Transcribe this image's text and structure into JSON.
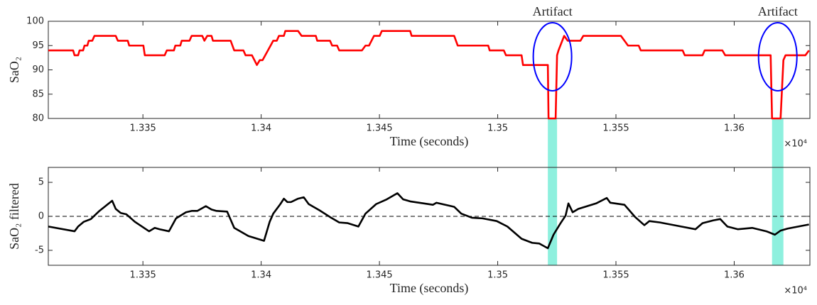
{
  "chart_data": [
    {
      "type": "line",
      "ylabel": "SaO₂",
      "xlabel": "Time (seconds)",
      "x_exponent_label": "×10⁴",
      "xlim": [
        13310,
        13632
      ],
      "ylim": [
        80,
        100
      ],
      "xticks": [
        {
          "value": 13350,
          "label": "1.335"
        },
        {
          "value": 13400,
          "label": "1.34"
        },
        {
          "value": 13450,
          "label": "1.345"
        },
        {
          "value": 13500,
          "label": "1.35"
        },
        {
          "value": 13550,
          "label": "1.355"
        },
        {
          "value": 13600,
          "label": "1.36"
        }
      ],
      "yticks": [
        80,
        85,
        90,
        95,
        100
      ],
      "x": [
        13310.0,
        13320.5,
        13321.1,
        13322.6,
        13323.2,
        13324.7,
        13325.3,
        13326.5,
        13327.1,
        13328.6,
        13329.5,
        13338.5,
        13339.4,
        13343.6,
        13344.2,
        13350.2,
        13350.8,
        13359.2,
        13360.1,
        13363.1,
        13363.7,
        13365.8,
        13366.4,
        13369.7,
        13370.6,
        13375.1,
        13376.0,
        13377.2,
        13379.0,
        13379.6,
        13387.1,
        13388.6,
        13392.5,
        13393.4,
        13396.1,
        13398.2,
        13399.4,
        13400.6,
        13405.1,
        13406.6,
        13407.5,
        13409.6,
        13410.2,
        13415.6,
        13417.1,
        13423.1,
        13423.7,
        13429.1,
        13430.0,
        13432.1,
        13433.0,
        13442.6,
        13444.1,
        13445.6,
        13447.7,
        13450.1,
        13451.0,
        13463.0,
        13463.6,
        13481.6,
        13483.1,
        13496.0,
        13496.6,
        13502.6,
        13503.5,
        13510.1,
        13510.7,
        13521.2,
        13521.5,
        13524.5,
        13525.1,
        13525.7,
        13528.1,
        13529.6,
        13535.0,
        13536.2,
        13552.1,
        13553.6,
        13555.1,
        13559.6,
        13560.5,
        13578.2,
        13579.1,
        13586.6,
        13587.5,
        13595.0,
        13596.2,
        13615.4,
        13616.0,
        13619.6,
        13620.8,
        13621.7,
        13630.1,
        13631.6
      ],
      "series": [
        {
          "color": "#ff0000",
          "values": [
            94,
            94,
            93,
            93,
            94,
            94,
            95,
            95,
            96,
            96,
            97,
            97,
            96,
            96,
            95,
            95,
            93,
            93,
            94,
            94,
            95,
            95,
            96,
            96,
            97,
            97,
            96,
            97,
            97,
            96,
            96,
            94,
            94,
            93,
            93,
            91,
            92,
            92,
            96,
            96,
            97,
            97,
            98,
            98,
            97,
            97,
            96,
            96,
            95,
            95,
            94,
            94,
            95,
            95,
            97,
            97,
            98,
            98,
            97,
            97,
            95,
            95,
            94,
            94,
            93,
            93,
            91,
            91,
            80,
            80,
            93,
            94,
            97,
            96,
            96,
            97,
            97,
            96,
            95,
            95,
            94,
            94,
            93,
            93,
            94,
            94,
            93,
            93,
            80,
            80,
            92,
            93,
            93,
            94
          ]
        }
      ],
      "artifacts": [
        {
          "label": "Artifact",
          "start": 13521.2,
          "end": 13525.1
        },
        {
          "label": "Artifact",
          "start": 13616.0,
          "end": 13620.8
        }
      ],
      "span_color": "#8ef0de",
      "ellipse_color": "#0000ff"
    },
    {
      "type": "line",
      "ylabel": "SaO₂ filtered",
      "xlabel": "Time (seconds)",
      "x_exponent_label": "×10⁴",
      "xlim": [
        13310,
        13632
      ],
      "ylim": [
        -7.2,
        7.2
      ],
      "xticks": [
        {
          "value": 13350,
          "label": "1.335"
        },
        {
          "value": 13400,
          "label": "1.34"
        },
        {
          "value": 13450,
          "label": "1.345"
        },
        {
          "value": 13500,
          "label": "1.35"
        },
        {
          "value": 13550,
          "label": "1.355"
        },
        {
          "value": 13600,
          "label": "1.36"
        }
      ],
      "yticks": [
        -5,
        0,
        5
      ],
      "hline": 0,
      "x": [
        13310.0,
        13321.1,
        13322.6,
        13325.0,
        13328.0,
        13331.6,
        13337.0,
        13338.5,
        13340.6,
        13343.0,
        13346.6,
        13352.6,
        13355.0,
        13357.1,
        13361.0,
        13364.0,
        13368.2,
        13370.6,
        13373.0,
        13376.6,
        13379.0,
        13381.1,
        13385.6,
        13388.6,
        13394.6,
        13401.2,
        13403.6,
        13405.1,
        13408.1,
        13409.6,
        13411.1,
        13412.6,
        13415.6,
        13418.0,
        13420.1,
        13424.6,
        13429.1,
        13433.0,
        13436.6,
        13441.1,
        13444.1,
        13448.6,
        13453.1,
        13457.6,
        13460.0,
        13463.0,
        13472.6,
        13474.1,
        13481.6,
        13484.6,
        13489.1,
        13493.6,
        13499.6,
        13504.1,
        13510.1,
        13514.6,
        13517.6,
        13521.2,
        13523.6,
        13526.6,
        13528.7,
        13529.9,
        13531.7,
        13534.1,
        13541.6,
        13546.1,
        13547.6,
        13553.6,
        13558.1,
        13562.0,
        13564.1,
        13568.6,
        13577.6,
        13583.6,
        13586.6,
        13591.1,
        13594.1,
        13597.1,
        13601.6,
        13607.6,
        13613.6,
        13617.2,
        13619.6,
        13622.6,
        13631.6
      ],
      "series": [
        {
          "color": "#000000",
          "values": [
            -1.5,
            -2.2,
            -1.5,
            -0.8,
            -0.4,
            0.8,
            2.3,
            1.1,
            0.5,
            0.3,
            -0.8,
            -2.2,
            -1.7,
            -1.9,
            -2.2,
            -0.3,
            0.6,
            0.8,
            0.8,
            1.5,
            1.0,
            0.8,
            0.7,
            -1.7,
            -2.9,
            -3.6,
            -0.8,
            0.4,
            1.8,
            2.6,
            2.1,
            2.1,
            2.6,
            2.8,
            1.8,
            0.9,
            -0.1,
            -0.9,
            -1.0,
            -1.5,
            0.4,
            1.8,
            2.5,
            3.4,
            2.5,
            2.2,
            1.7,
            2.0,
            1.4,
            0.4,
            -0.2,
            -0.3,
            -0.7,
            -1.5,
            -3.3,
            -3.9,
            -4.0,
            -4.7,
            -2.7,
            -1.0,
            0.1,
            1.9,
            0.6,
            1.1,
            1.9,
            2.7,
            2.0,
            1.7,
            -0.1,
            -1.3,
            -0.7,
            -0.9,
            -1.5,
            -1.9,
            -1.0,
            -0.6,
            -0.4,
            -1.5,
            -1.9,
            -1.7,
            -2.2,
            -2.7,
            -2.1,
            -1.8,
            -1.2
          ]
        }
      ]
    }
  ]
}
